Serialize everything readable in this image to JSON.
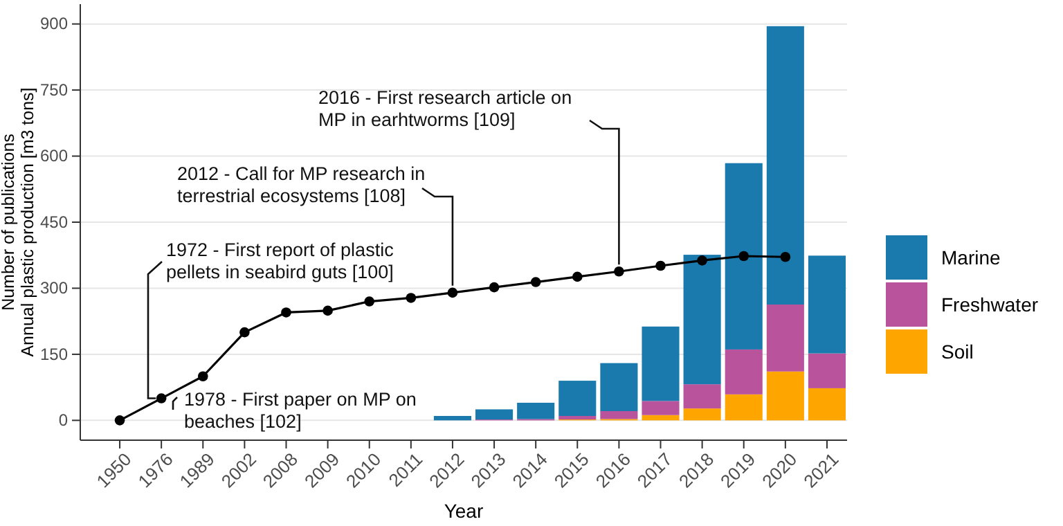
{
  "chart_data": {
    "type": "bar",
    "stacked": true,
    "xlabel": "Year",
    "ylabel": "Number of publications\nAnnual plastic production [m3 tons]",
    "categories": [
      "1950",
      "1976",
      "1989",
      "2002",
      "2008",
      "2009",
      "2010",
      "2011",
      "2012",
      "2013",
      "2014",
      "2015",
      "2016",
      "2017",
      "2018",
      "2019",
      "2020",
      "2021"
    ],
    "series": [
      {
        "name": "Soil",
        "color": "#ffa500",
        "values": [
          null,
          null,
          null,
          null,
          null,
          null,
          null,
          null,
          0,
          0,
          0,
          2,
          3,
          12,
          27,
          59,
          111,
          73
        ]
      },
      {
        "name": "Freshwater",
        "color": "#b9539b",
        "values": [
          null,
          null,
          null,
          null,
          null,
          null,
          null,
          null,
          0,
          2,
          3,
          8,
          18,
          32,
          55,
          102,
          152,
          79
        ]
      },
      {
        "name": "Marine",
        "color": "#1a7aad",
        "values": [
          null,
          null,
          null,
          null,
          null,
          null,
          null,
          null,
          10,
          23,
          37,
          80,
          109,
          169,
          294,
          423,
          632,
          222
        ]
      },
      {
        "type": "line",
        "color": "#000000",
        "marker": "circle",
        "values": [
          0,
          50,
          100,
          200,
          245,
          249,
          270,
          278,
          290,
          302,
          314,
          326,
          338,
          351,
          363,
          373,
          371,
          null
        ]
      }
    ],
    "ylim": [
      -45,
      945
    ],
    "yticks": [
      0,
      150,
      300,
      450,
      600,
      750,
      900
    ],
    "grid": "y",
    "legend": "right",
    "annotations": [
      {
        "text": "1972 - First report of plastic pellets in seabird guts [100]",
        "x": "1976",
        "y": 50
      },
      {
        "text": "2012 - Call for MP research in terrestrial ecosystems [108]",
        "x": "2012",
        "y": 290
      },
      {
        "text": "2016 - First research article on MP in earhtworms [109]",
        "x": "2016",
        "y": 338
      },
      {
        "text": "1978 - First paper on MP on beaches [102]",
        "x": "1976",
        "y": 50
      }
    ]
  }
}
